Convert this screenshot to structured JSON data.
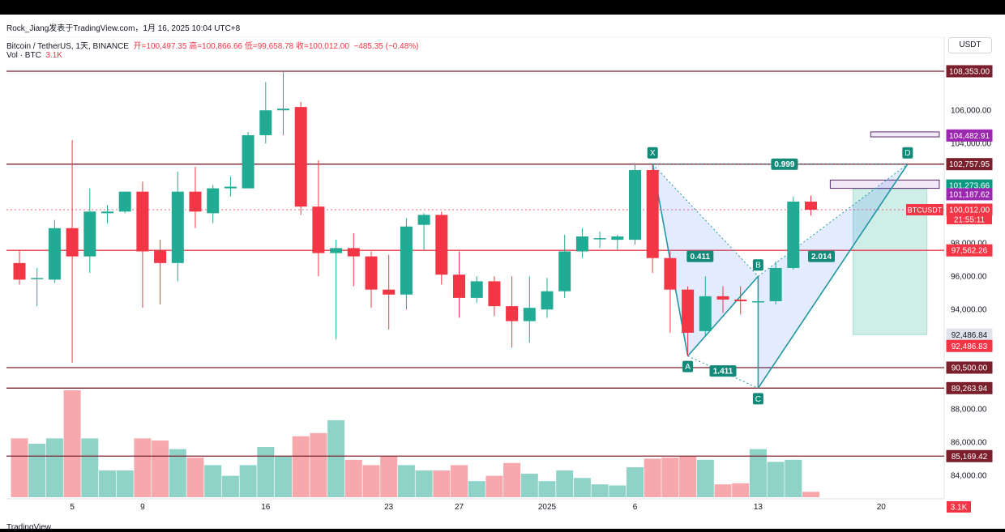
{
  "header": {
    "top_line": "Rock_Jiang发表于TradingView.com，1月 16, 2025 10:04 UTC+8",
    "symbol": "Bitcoin / TetherUS, 1天, BINANCE",
    "ohlc_label": "开=100,497.35 高=100,866.66 低=99,658.78 收=100,012.00",
    "change": "−485.35 (−0.48%)",
    "vol_label": "Vol · BTC",
    "vol_value": "3.1K"
  },
  "currency_button": "USDT",
  "footer_logo": "TradingView",
  "colors": {
    "up": "#22ab94",
    "down": "#f23645",
    "level": "#7a1f2b",
    "pattern": "#2196a6"
  },
  "chart_data": {
    "type": "candlestick",
    "ylim": [
      83000,
      109500
    ],
    "y_ticks": [
      {
        "v": 106000,
        "t": "106,000.00"
      },
      {
        "v": 104000,
        "t": "104,000.00"
      },
      {
        "v": 98000,
        "t": "98,000.00"
      },
      {
        "v": 96000,
        "t": "96,000.00"
      },
      {
        "v": 94000,
        "t": "94,000.00"
      },
      {
        "v": 88000,
        "t": "88,000.00"
      },
      {
        "v": 86000,
        "t": "86,000.00"
      },
      {
        "v": 84000,
        "t": "84,000.00"
      }
    ],
    "x_ticks": [
      {
        "i": 3,
        "t": "5"
      },
      {
        "i": 7,
        "t": "9"
      },
      {
        "i": 14,
        "t": "16"
      },
      {
        "i": 21,
        "t": "23"
      },
      {
        "i": 25,
        "t": "27"
      },
      {
        "i": 30,
        "t": "2025"
      },
      {
        "i": 35,
        "t": "6"
      },
      {
        "i": 42,
        "t": "13"
      },
      {
        "i": 49,
        "t": "20"
      }
    ],
    "candles": [
      {
        "o": 96800,
        "h": 97600,
        "l": 95500,
        "c": 95800,
        "v": 0.55
      },
      {
        "o": 95900,
        "h": 96500,
        "l": 94200,
        "c": 95900,
        "v": 0.5
      },
      {
        "o": 95800,
        "h": 99400,
        "l": 95600,
        "c": 98900,
        "v": 0.55
      },
      {
        "o": 98900,
        "h": 104200,
        "l": 90800,
        "c": 97200,
        "v": 1
      },
      {
        "o": 97200,
        "h": 101300,
        "l": 96200,
        "c": 99900,
        "v": 0.55
      },
      {
        "o": 99800,
        "h": 100300,
        "l": 99200,
        "c": 99900,
        "v": 0.25
      },
      {
        "o": 99900,
        "h": 101100,
        "l": 99800,
        "c": 101100,
        "v": 0.25
      },
      {
        "o": 101100,
        "h": 101700,
        "l": 94100,
        "c": 97500,
        "v": 0.55
      },
      {
        "o": 97600,
        "h": 98200,
        "l": 94300,
        "c": 96800,
        "v": 0.53
      },
      {
        "o": 96800,
        "h": 102300,
        "l": 95700,
        "c": 101100,
        "v": 0.45
      },
      {
        "o": 101100,
        "h": 102600,
        "l": 98900,
        "c": 99900,
        "v": 0.37
      },
      {
        "o": 99800,
        "h": 101500,
        "l": 99200,
        "c": 101300,
        "v": 0.3
      },
      {
        "o": 101300,
        "h": 102000,
        "l": 100800,
        "c": 101400,
        "v": 0.2
      },
      {
        "o": 101300,
        "h": 104700,
        "l": 101300,
        "c": 104500,
        "v": 0.3
      },
      {
        "o": 104500,
        "h": 107700,
        "l": 104000,
        "c": 106000,
        "v": 0.47
      },
      {
        "o": 106000,
        "h": 108353,
        "l": 104500,
        "c": 106100,
        "v": 0.38
      },
      {
        "o": 106200,
        "h": 106500,
        "l": 99700,
        "c": 100200,
        "v": 0.57
      },
      {
        "o": 100200,
        "h": 103000,
        "l": 96000,
        "c": 97400,
        "v": 0.6
      },
      {
        "o": 97400,
        "h": 98200,
        "l": 92200,
        "c": 97700,
        "v": 0.72
      },
      {
        "o": 97700,
        "h": 98600,
        "l": 95400,
        "c": 97200,
        "v": 0.35
      },
      {
        "o": 97200,
        "h": 97500,
        "l": 94100,
        "c": 95200,
        "v": 0.3
      },
      {
        "o": 95200,
        "h": 97300,
        "l": 92800,
        "c": 94900,
        "v": 0.38
      },
      {
        "o": 94900,
        "h": 99500,
        "l": 94000,
        "c": 99000,
        "v": 0.3
      },
      {
        "o": 99100,
        "h": 99800,
        "l": 97600,
        "c": 99700,
        "v": 0.25
      },
      {
        "o": 99700,
        "h": 99900,
        "l": 95500,
        "c": 96100,
        "v": 0.25
      },
      {
        "o": 96100,
        "h": 97500,
        "l": 93500,
        "c": 94700,
        "v": 0.3
      },
      {
        "o": 94700,
        "h": 96000,
        "l": 94400,
        "c": 95700,
        "v": 0.15
      },
      {
        "o": 95700,
        "h": 96000,
        "l": 93600,
        "c": 94200,
        "v": 0.2
      },
      {
        "o": 94200,
        "h": 96000,
        "l": 91700,
        "c": 93300,
        "v": 0.32
      },
      {
        "o": 93300,
        "h": 96000,
        "l": 92000,
        "c": 94100,
        "v": 0.22
      },
      {
        "o": 94000,
        "h": 95900,
        "l": 93500,
        "c": 95100,
        "v": 0.15
      },
      {
        "o": 95100,
        "h": 98500,
        "l": 94700,
        "c": 97500,
        "v": 0.25
      },
      {
        "o": 97500,
        "h": 98900,
        "l": 97100,
        "c": 98400,
        "v": 0.18
      },
      {
        "o": 98300,
        "h": 98700,
        "l": 97700,
        "c": 98300,
        "v": 0.12
      },
      {
        "o": 98200,
        "h": 98500,
        "l": 97600,
        "c": 98400,
        "v": 0.11
      },
      {
        "o": 98200,
        "h": 102800,
        "l": 97900,
        "c": 102400,
        "v": 0.28
      },
      {
        "o": 102400,
        "h": 102700,
        "l": 96200,
        "c": 97100,
        "v": 0.36
      },
      {
        "o": 97100,
        "h": 97500,
        "l": 92600,
        "c": 95200,
        "v": 0.37
      },
      {
        "o": 95200,
        "h": 95400,
        "l": 91200,
        "c": 92600,
        "v": 0.38
      },
      {
        "o": 92700,
        "h": 96000,
        "l": 92400,
        "c": 94800,
        "v": 0.35
      },
      {
        "o": 94800,
        "h": 95400,
        "l": 93800,
        "c": 94600,
        "v": 0.12
      },
      {
        "o": 94600,
        "h": 95400,
        "l": 93700,
        "c": 94500,
        "v": 0.13
      },
      {
        "o": 94500,
        "h": 94700,
        "l": 89263.94,
        "c": 94500,
        "v": 0.45
      },
      {
        "o": 94500,
        "h": 96900,
        "l": 94300,
        "c": 96500,
        "v": 0.33
      },
      {
        "o": 96500,
        "h": 100800,
        "l": 96400,
        "c": 100500,
        "v": 0.35
      },
      {
        "o": 100500,
        "h": 100866.66,
        "l": 99658.78,
        "c": 100012,
        "v": 0.05
      }
    ],
    "horizontal_levels": [
      108353,
      102757.95,
      97562.26,
      90500,
      89263.94,
      85169.42
    ],
    "right_labels": [
      {
        "v": 108353,
        "t": "108,353.00",
        "style": "level"
      },
      {
        "v": 104482.91,
        "t": "104,482.91",
        "style": "purple"
      },
      {
        "v": 102757.95,
        "t": "102,757.95",
        "style": "level"
      },
      {
        "v": 101273.66,
        "t": "101,273.66",
        "style": "green"
      },
      {
        "v": 101187.62,
        "t": "101,187.62",
        "style": "purple"
      },
      {
        "v": 100012,
        "t": "100,012.00",
        "style": "red"
      },
      {
        "v": 97562.26,
        "t": "97,562.26",
        "style": "red"
      },
      {
        "v": 92486.84,
        "t": "92,486.84",
        "style": "grey"
      },
      {
        "v": 92486.83,
        "t": "92,486.83",
        "style": "red"
      },
      {
        "v": 90500,
        "t": "90,500.00",
        "style": "level"
      },
      {
        "v": 89263.94,
        "t": "89,263.94",
        "style": "level"
      },
      {
        "v": 85169.42,
        "t": "85,169.42",
        "style": "level"
      }
    ],
    "countdown": "21:55:11",
    "symbol_tag": "BTCUSDT",
    "volume_tag": "3.1K",
    "pattern_points": [
      {
        "name": "X",
        "i": 36,
        "v": 102757.95
      },
      {
        "name": "A",
        "i": 38,
        "v": 91200
      },
      {
        "name": "B",
        "i": 42,
        "v": 96000
      },
      {
        "name": "C",
        "i": 42,
        "v": 89263.94
      },
      {
        "name": "D",
        "i": 50.5,
        "v": 102757.95
      }
    ],
    "ratios": [
      {
        "t": "0.411",
        "i": 38.7,
        "v": 97200
      },
      {
        "t": "1.411",
        "i": 40,
        "v": 90300
      },
      {
        "t": "0.999",
        "i": 43.5,
        "v": 102757.95
      },
      {
        "t": "2.014",
        "i": 45.6,
        "v": 97200
      }
    ],
    "position_box": {
      "i0": 47.4,
      "i1": 51.6,
      "entry": 101187.62,
      "target": 101273.66,
      "stop": 92486.84
    },
    "rect_104": {
      "i0": 48.4,
      "i1": 52.3,
      "v1": 104700,
      "v2": 104400
    },
    "rect_101": {
      "i0": 46.1,
      "i1": 52.3,
      "v1": 101800,
      "v2": 101300
    }
  }
}
